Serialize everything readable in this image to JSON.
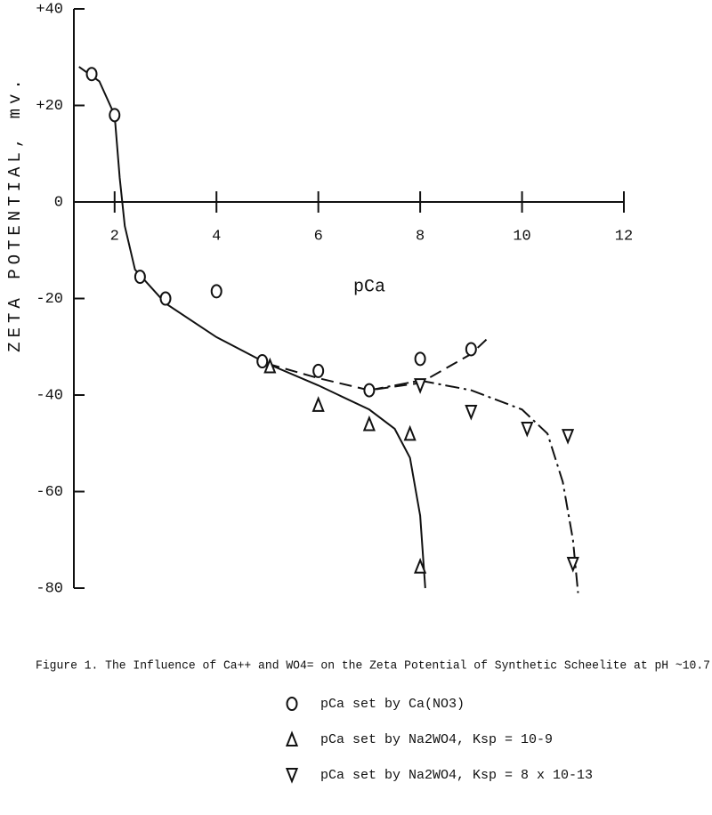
{
  "chart_data": {
    "type": "scatter",
    "caption": "Figure 1. The Influence of Ca++ and WO4= on the Zeta Potential of Synthetic Scheelite at pH ~10.7",
    "x_label": "pCa",
    "y_label": "ZETA POTENTIAL, mv.",
    "xlim": [
      1.2,
      12
    ],
    "ylim": [
      -80,
      40
    ],
    "xticks": [
      2,
      4,
      6,
      8,
      10,
      12
    ],
    "yticks": [
      {
        "value": 40,
        "label": "+40"
      },
      {
        "value": 20,
        "label": "+20"
      },
      0,
      -20,
      -40,
      -60,
      -80
    ],
    "color": "#111111",
    "series": [
      {
        "name": "pCa set by Ca(NO3)",
        "marker": "circle",
        "x": [
          1.55,
          2.0,
          2.5,
          3.0,
          4.0,
          4.9,
          6.0,
          7.0,
          8.0,
          9.0
        ],
        "values": [
          26.5,
          18,
          -15.5,
          -20,
          -18.5,
          -33,
          -35,
          -39,
          -32.5,
          -30.5
        ]
      },
      {
        "name": "pCa set by Na2WO4, Ksp = 10-9",
        "marker": "triangle-up",
        "x": [
          5.05,
          6.0,
          7.0,
          7.8,
          8.0
        ],
        "values": [
          -34,
          -42,
          -46,
          -48,
          -75.5
        ]
      },
      {
        "name": "pCa set by Na2WO4, Ksp = 8 x 10-13",
        "marker": "triangle-down",
        "x": [
          8.0,
          9.0,
          10.1,
          10.9,
          11.0
        ],
        "values": [
          -38,
          -43.5,
          -47,
          -48.5,
          -75
        ]
      }
    ],
    "curves": [
      {
        "style": "solid",
        "x": [
          1.3,
          1.7,
          2.0,
          2.1,
          2.2,
          2.4,
          3.0,
          4.0,
          5.0,
          6.0,
          7.0,
          7.5,
          7.8,
          8.0,
          8.1
        ],
        "values": [
          28,
          25,
          18,
          5,
          -5,
          -14,
          -21,
          -28,
          -33.5,
          -38,
          -43,
          -47,
          -53,
          -65,
          -80
        ]
      },
      {
        "style": "dashed",
        "x": [
          5.0,
          6.0,
          7.0,
          8.0,
          9.0,
          9.3
        ],
        "values": [
          -33.5,
          -36.5,
          -39,
          -37.5,
          -31.5,
          -28.5
        ]
      },
      {
        "style": "dash-dot",
        "x": [
          7.0,
          8.0,
          9.0,
          10.0,
          10.5,
          10.8,
          11.0,
          11.1
        ],
        "values": [
          -39,
          -37,
          -39,
          -43,
          -48,
          -58,
          -70,
          -81
        ]
      }
    ]
  }
}
